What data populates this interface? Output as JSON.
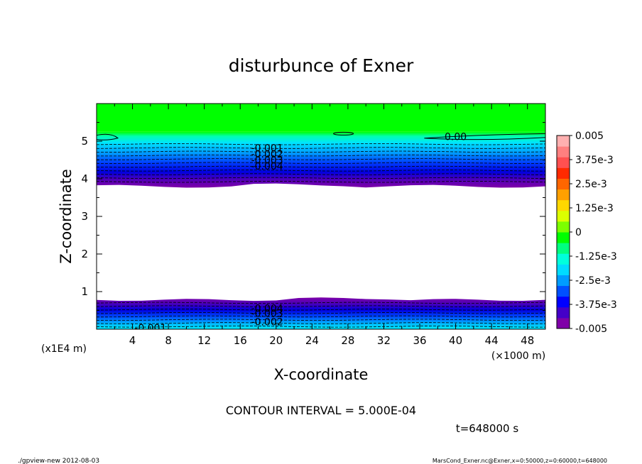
{
  "chart_data": {
    "type": "contour",
    "title": "disturbunce of Exner",
    "xlabel": "X-coordinate",
    "ylabel": "Z-coordinate",
    "x_unit": "(×1000 m)",
    "y_unit": "(x1E4 m)",
    "xlim": [
      0,
      50
    ],
    "ylim": [
      0,
      6
    ],
    "x_ticks": [
      "4",
      "8",
      "12",
      "16",
      "20",
      "24",
      "28",
      "32",
      "36",
      "40",
      "44",
      "48"
    ],
    "y_ticks": [
      "1",
      "2",
      "3",
      "4",
      "5"
    ],
    "contour_interval_text": "CONTOUR INTERVAL = 5.000E-04",
    "time_text": "t=648000 s",
    "contour_labels": [
      {
        "text": "0.00",
        "x": 40,
        "z": 5.12
      },
      {
        "text": "-0.001",
        "x": 19,
        "z": 4.82
      },
      {
        "text": "-0.002",
        "x": 19,
        "z": 4.66
      },
      {
        "text": "-0.003",
        "x": 19,
        "z": 4.5
      },
      {
        "text": "-0.004",
        "x": 19,
        "z": 4.34
      },
      {
        "text": "-0.004",
        "x": 19,
        "z": 0.56
      },
      {
        "text": "-0.003",
        "x": 19,
        "z": 0.42
      },
      {
        "text": "-0.002",
        "x": 19,
        "z": 0.2
      },
      {
        "text": "-0.001",
        "x": 6,
        "z": 0.04
      }
    ],
    "colorbar": {
      "min": -0.005,
      "max": 0.005,
      "tick_labels": [
        "0.005",
        "3.75e-3",
        "2.5e-3",
        "1.25e-3",
        "0",
        "-1.25e-3",
        "-2.5e-3",
        "-3.75e-3",
        "-0.005"
      ],
      "colors": [
        "#7f00a8",
        "#4400c8",
        "#0000ff",
        "#0050ff",
        "#009cff",
        "#00dcff",
        "#00ffdc",
        "#00ff80",
        "#00ff00",
        "#7cff00",
        "#dcff00",
        "#ffd800",
        "#ffa000",
        "#ff6600",
        "#ff2a00",
        "#ff5050",
        "#ff8080",
        "#ffb0b0"
      ]
    },
    "bands": {
      "top_green": [
        5.25,
        6.0
      ],
      "top_gradient": [
        3.8,
        5.25
      ],
      "blank": [
        0.78,
        3.8
      ],
      "bottom_gradient": [
        0.0,
        0.78
      ]
    }
  },
  "footer": {
    "left": "./gpview-new   2012-08-03",
    "right": "MarsCond_Exner.nc@Exner,x=0:50000,z=0:60000,t=648000"
  }
}
